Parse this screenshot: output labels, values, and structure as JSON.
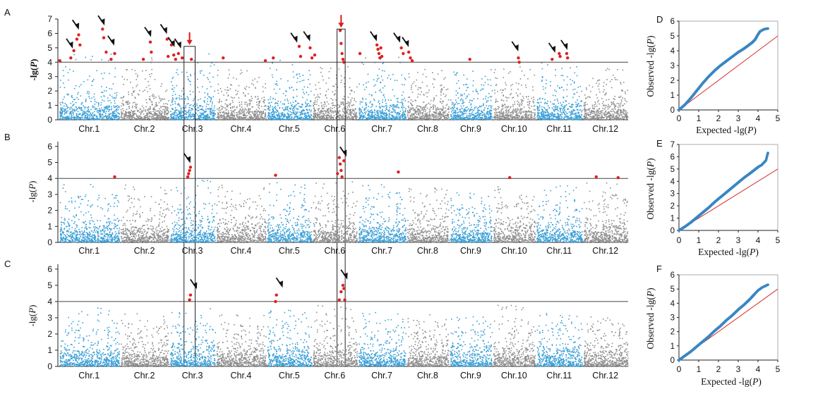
{
  "chart_data": [
    {
      "panel": "A",
      "type": "scatter",
      "subtype": "manhattan",
      "ylabel": "-lg(P)",
      "ylim": [
        0,
        7
      ],
      "yticks": [
        "0",
        "1",
        "2",
        "3",
        "4",
        "5",
        "6",
        "7"
      ],
      "threshold": 4,
      "categories": [
        "Chr.1",
        "Chr.2",
        "Chr.3",
        "Chr.4",
        "Chr.5",
        "Chr.6",
        "Chr.7",
        "Chr.8",
        "Chr.9",
        "Chr.10",
        "Chr.11",
        "Chr.12"
      ],
      "peak_max": [
        4.6,
        4.4,
        4.7,
        3.6,
        4.3,
        4.0,
        4.4,
        3.6,
        3.5,
        3.9,
        4.0,
        3.6
      ],
      "significant": [
        {
          "chr": 1,
          "pos": 0.02,
          "y": 4.1
        },
        {
          "chr": 1,
          "pos": 0.2,
          "y": 4.3
        },
        {
          "chr": 1,
          "pos": 0.25,
          "y": 4.8
        },
        {
          "chr": 1,
          "pos": 0.3,
          "y": 5.6
        },
        {
          "chr": 1,
          "pos": 0.33,
          "y": 5.9
        },
        {
          "chr": 1,
          "pos": 0.35,
          "y": 5.2
        },
        {
          "chr": 1,
          "pos": 0.72,
          "y": 6.3
        },
        {
          "chr": 1,
          "pos": 0.74,
          "y": 5.7
        },
        {
          "chr": 1,
          "pos": 0.78,
          "y": 4.7
        },
        {
          "chr": 1,
          "pos": 0.86,
          "y": 4.2
        },
        {
          "chr": 1,
          "pos": 0.92,
          "y": 4.6
        },
        {
          "chr": 2,
          "pos": 0.48,
          "y": 4.2
        },
        {
          "chr": 2,
          "pos": 0.62,
          "y": 5.4
        },
        {
          "chr": 2,
          "pos": 0.64,
          "y": 4.7
        },
        {
          "chr": 2,
          "pos": 0.96,
          "y": 5.6
        },
        {
          "chr": 2,
          "pos": 0.98,
          "y": 4.4
        },
        {
          "chr": 3,
          "pos": 0.05,
          "y": 5.2
        },
        {
          "chr": 3,
          "pos": 0.1,
          "y": 4.5
        },
        {
          "chr": 3,
          "pos": 0.14,
          "y": 4.2
        },
        {
          "chr": 3,
          "pos": 0.2,
          "y": 4.6
        },
        {
          "chr": 3,
          "pos": 0.28,
          "y": 4.3
        },
        {
          "chr": 3,
          "pos": 0.48,
          "y": 4.2
        },
        {
          "chr": 4,
          "pos": 0.15,
          "y": 4.3
        },
        {
          "chr": 4,
          "pos": 0.98,
          "y": 4.1
        },
        {
          "chr": 5,
          "pos": 0.15,
          "y": 4.3
        },
        {
          "chr": 5,
          "pos": 0.72,
          "y": 5.1
        },
        {
          "chr": 5,
          "pos": 0.75,
          "y": 4.4
        },
        {
          "chr": 5,
          "pos": 0.96,
          "y": 5.0
        },
        {
          "chr": 5,
          "pos": 1.0,
          "y": 4.3
        },
        {
          "chr": 6,
          "pos": 0.06,
          "y": 4.5
        },
        {
          "chr": 6,
          "pos": 0.62,
          "y": 6.2
        },
        {
          "chr": 6,
          "pos": 0.64,
          "y": 5.3
        },
        {
          "chr": 6,
          "pos": 0.66,
          "y": 4.6
        },
        {
          "chr": 6,
          "pos": 0.68,
          "y": 4.2
        },
        {
          "chr": 6,
          "pos": 0.7,
          "y": 4.0
        },
        {
          "chr": 7,
          "pos": 0.05,
          "y": 4.6
        },
        {
          "chr": 7,
          "pos": 0.4,
          "y": 5.2
        },
        {
          "chr": 7,
          "pos": 0.42,
          "y": 4.9
        },
        {
          "chr": 7,
          "pos": 0.44,
          "y": 4.6
        },
        {
          "chr": 7,
          "pos": 0.46,
          "y": 4.3
        },
        {
          "chr": 7,
          "pos": 0.48,
          "y": 5.0
        },
        {
          "chr": 7,
          "pos": 0.5,
          "y": 4.4
        },
        {
          "chr": 7,
          "pos": 0.9,
          "y": 5.0
        },
        {
          "chr": 7,
          "pos": 0.94,
          "y": 4.6
        },
        {
          "chr": 8,
          "pos": 0.06,
          "y": 4.7
        },
        {
          "chr": 8,
          "pos": 0.1,
          "y": 4.3
        },
        {
          "chr": 8,
          "pos": 0.14,
          "y": 4.1
        },
        {
          "chr": 9,
          "pos": 0.48,
          "y": 4.2
        },
        {
          "chr": 10,
          "pos": 0.6,
          "y": 4.3
        },
        {
          "chr": 10,
          "pos": 0.62,
          "y": 4.0
        },
        {
          "chr": 11,
          "pos": 0.35,
          "y": 4.2
        },
        {
          "chr": 11,
          "pos": 0.5,
          "y": 4.6
        },
        {
          "chr": 11,
          "pos": 0.52,
          "y": 4.4
        },
        {
          "chr": 11,
          "pos": 0.66,
          "y": 4.6
        },
        {
          "chr": 11,
          "pos": 0.68,
          "y": 4.3
        }
      ],
      "arrows": [
        {
          "chr": 1,
          "pos": 0.22,
          "y": 5.0,
          "color": "black"
        },
        {
          "chr": 1,
          "pos": 0.32,
          "y": 6.3,
          "color": "black"
        },
        {
          "chr": 1,
          "pos": 0.74,
          "y": 6.6,
          "color": "black"
        },
        {
          "chr": 1,
          "pos": 0.9,
          "y": 5.2,
          "color": "black"
        },
        {
          "chr": 2,
          "pos": 0.62,
          "y": 5.8,
          "color": "black"
        },
        {
          "chr": 2,
          "pos": 0.94,
          "y": 6.0,
          "color": "black"
        },
        {
          "chr": 3,
          "pos": 0.1,
          "y": 5.1,
          "color": "black"
        },
        {
          "chr": 3,
          "pos": 0.24,
          "y": 5.0,
          "color": "black"
        },
        {
          "chr": 3,
          "pos": 0.44,
          "y": 5.3,
          "color": "red"
        },
        {
          "chr": 5,
          "pos": 0.66,
          "y": 5.4,
          "color": "black"
        },
        {
          "chr": 5,
          "pos": 0.94,
          "y": 5.5,
          "color": "black"
        },
        {
          "chr": 6,
          "pos": 0.64,
          "y": 6.5,
          "color": "red"
        },
        {
          "chr": 7,
          "pos": 0.38,
          "y": 5.5,
          "color": "black"
        },
        {
          "chr": 7,
          "pos": 0.86,
          "y": 5.4,
          "color": "black"
        },
        {
          "chr": 8,
          "pos": 0.04,
          "y": 5.1,
          "color": "black"
        },
        {
          "chr": 10,
          "pos": 0.58,
          "y": 4.8,
          "color": "black"
        },
        {
          "chr": 11,
          "pos": 0.4,
          "y": 4.7,
          "color": "black"
        },
        {
          "chr": 11,
          "pos": 0.66,
          "y": 4.9,
          "color": "black"
        }
      ],
      "boxes": [
        {
          "chr": 3,
          "pos_start": 0.32,
          "pos_end": 0.56,
          "ymax": 5.1
        },
        {
          "chr": 6,
          "pos_start": 0.55,
          "pos_end": 0.73,
          "ymax": 6.3
        }
      ]
    },
    {
      "panel": "B",
      "type": "scatter",
      "subtype": "manhattan",
      "ylabel": "-lg(P)",
      "ylim": [
        0,
        6.3
      ],
      "yticks": [
        "0",
        "1",
        "2",
        "3",
        "4",
        "5",
        "6"
      ],
      "threshold": 4,
      "categories": [
        "Chr.1",
        "Chr.2",
        "Chr.3",
        "Chr.4",
        "Chr.5",
        "Chr.6",
        "Chr.7",
        "Chr.8",
        "Chr.9",
        "Chr.10",
        "Chr.11",
        "Chr.12"
      ],
      "peak_max": [
        3.8,
        3.6,
        3.9,
        3.6,
        3.8,
        3.9,
        3.6,
        3.5,
        3.2,
        3.5,
        3.7,
        3.9
      ],
      "significant": [
        {
          "chr": 1,
          "pos": 0.92,
          "y": 4.1
        },
        {
          "chr": 3,
          "pos": 0.4,
          "y": 4.1
        },
        {
          "chr": 3,
          "pos": 0.42,
          "y": 4.3
        },
        {
          "chr": 3,
          "pos": 0.44,
          "y": 4.5
        },
        {
          "chr": 3,
          "pos": 0.46,
          "y": 4.7
        },
        {
          "chr": 5,
          "pos": 0.2,
          "y": 4.2
        },
        {
          "chr": 6,
          "pos": 0.56,
          "y": 4.3
        },
        {
          "chr": 6,
          "pos": 0.6,
          "y": 5.3
        },
        {
          "chr": 6,
          "pos": 0.62,
          "y": 4.9
        },
        {
          "chr": 6,
          "pos": 0.64,
          "y": 4.5
        },
        {
          "chr": 6,
          "pos": 0.66,
          "y": 4.1
        },
        {
          "chr": 6,
          "pos": 0.7,
          "y": 5.1
        },
        {
          "chr": 7,
          "pos": 0.84,
          "y": 4.4
        },
        {
          "chr": 10,
          "pos": 0.4,
          "y": 4.05
        },
        {
          "chr": 12,
          "pos": 0.3,
          "y": 4.1
        },
        {
          "chr": 12,
          "pos": 0.78,
          "y": 4.05
        }
      ],
      "arrows": [
        {
          "chr": 3,
          "pos": 0.44,
          "y": 5.0,
          "color": "black"
        },
        {
          "chr": 6,
          "pos": 0.74,
          "y": 5.4,
          "color": "black"
        }
      ],
      "boxes": []
    },
    {
      "panel": "C",
      "type": "scatter",
      "subtype": "manhattan",
      "ylabel": "-lg(P)",
      "ylim": [
        0,
        6.3
      ],
      "yticks": [
        "0",
        "1",
        "2",
        "3",
        "4",
        "5",
        "6"
      ],
      "threshold": 4,
      "categories": [
        "Chr.1",
        "Chr.2",
        "Chr.3",
        "Chr.4",
        "Chr.5",
        "Chr.6",
        "Chr.7",
        "Chr.8",
        "Chr.9",
        "Chr.10",
        "Chr.11",
        "Chr.12"
      ],
      "peak_max": [
        3.6,
        3.3,
        3.6,
        3.2,
        3.6,
        3.8,
        3.4,
        3.2,
        3.1,
        3.8,
        3.3,
        3.3
      ],
      "significant": [
        {
          "chr": 3,
          "pos": 0.44,
          "y": 4.1
        },
        {
          "chr": 3,
          "pos": 0.46,
          "y": 4.4
        },
        {
          "chr": 5,
          "pos": 0.2,
          "y": 4.0
        },
        {
          "chr": 5,
          "pos": 0.22,
          "y": 4.4
        },
        {
          "chr": 6,
          "pos": 0.6,
          "y": 4.1
        },
        {
          "chr": 6,
          "pos": 0.64,
          "y": 4.6
        },
        {
          "chr": 6,
          "pos": 0.68,
          "y": 5.0
        },
        {
          "chr": 6,
          "pos": 0.7,
          "y": 4.8
        },
        {
          "chr": 6,
          "pos": 0.72,
          "y": 4.1
        }
      ],
      "arrows": [
        {
          "chr": 3,
          "pos": 0.58,
          "y": 4.8,
          "color": "black"
        },
        {
          "chr": 5,
          "pos": 0.34,
          "y": 4.9,
          "color": "black"
        },
        {
          "chr": 6,
          "pos": 0.76,
          "y": 5.4,
          "color": "black"
        }
      ],
      "boxes": []
    },
    {
      "panel": "D",
      "type": "scatter",
      "subtype": "qq",
      "xlabel": "Expected -lg(P)",
      "ylabel": "Observed -lg(P)",
      "xlim": [
        0,
        5
      ],
      "ylim": [
        0,
        6
      ],
      "xticks": [
        "0",
        "1",
        "2",
        "3",
        "4",
        "5"
      ],
      "yticks": [
        "0",
        "1",
        "2",
        "3",
        "4",
        "5",
        "6"
      ],
      "x": [
        0,
        0.3,
        0.6,
        0.9,
        1.2,
        1.5,
        1.8,
        2.1,
        2.4,
        2.7,
        3.0,
        3.3,
        3.5,
        3.7,
        3.85,
        4.0,
        4.1,
        4.3,
        4.5
      ],
      "y": [
        0,
        0.35,
        0.8,
        1.3,
        1.8,
        2.25,
        2.65,
        3.0,
        3.3,
        3.6,
        3.9,
        4.15,
        4.35,
        4.55,
        4.75,
        5.1,
        5.3,
        5.45,
        5.5
      ],
      "reference_line": [
        [
          0,
          0
        ],
        [
          5,
          5
        ]
      ]
    },
    {
      "panel": "E",
      "type": "scatter",
      "subtype": "qq",
      "xlabel": "Expected -lg(P)",
      "ylabel": "Observed -lg(P)",
      "xlim": [
        0,
        5
      ],
      "ylim": [
        0,
        7
      ],
      "xticks": [
        "0",
        "1",
        "2",
        "3",
        "4",
        "5"
      ],
      "yticks": [
        "0",
        "1",
        "2",
        "3",
        "4",
        "5",
        "6",
        "7"
      ],
      "x": [
        0,
        0.3,
        0.6,
        0.9,
        1.2,
        1.5,
        1.8,
        2.1,
        2.4,
        2.7,
        3.0,
        3.3,
        3.6,
        3.8,
        4.0,
        4.2,
        4.4,
        4.5
      ],
      "y": [
        0,
        0.3,
        0.65,
        1.05,
        1.45,
        1.85,
        2.3,
        2.7,
        3.1,
        3.5,
        3.9,
        4.3,
        4.65,
        4.9,
        5.15,
        5.35,
        5.7,
        6.3
      ],
      "reference_line": [
        [
          0,
          0
        ],
        [
          5,
          5
        ]
      ]
    },
    {
      "panel": "F",
      "type": "scatter",
      "subtype": "qq",
      "xlabel": "Expected -lg(P)",
      "ylabel": "Observed -lg(P)",
      "xlim": [
        0,
        5
      ],
      "ylim": [
        0,
        6
      ],
      "xticks": [
        "0",
        "1",
        "2",
        "3",
        "4",
        "5"
      ],
      "yticks": [
        "0",
        "1",
        "2",
        "3",
        "4",
        "5",
        "6"
      ],
      "x": [
        0,
        0.3,
        0.6,
        0.9,
        1.2,
        1.5,
        1.8,
        2.1,
        2.4,
        2.7,
        3.0,
        3.3,
        3.6,
        3.8,
        4.0,
        4.2,
        4.5
      ],
      "y": [
        0,
        0.3,
        0.6,
        0.95,
        1.3,
        1.65,
        2.05,
        2.4,
        2.8,
        3.15,
        3.55,
        3.9,
        4.3,
        4.6,
        4.9,
        5.1,
        5.3
      ],
      "reference_line": [
        [
          0,
          0
        ],
        [
          5,
          5
        ]
      ]
    }
  ],
  "colors": {
    "odd_chr": "#3a9fd6",
    "even_chr": "#8e8e8e",
    "significant": "#e02020",
    "threshold": "#444444",
    "qq_points": "#3a86c4",
    "qq_line": "#d03030",
    "arrow_red": "#e01818",
    "arrow_black": "#111111"
  }
}
